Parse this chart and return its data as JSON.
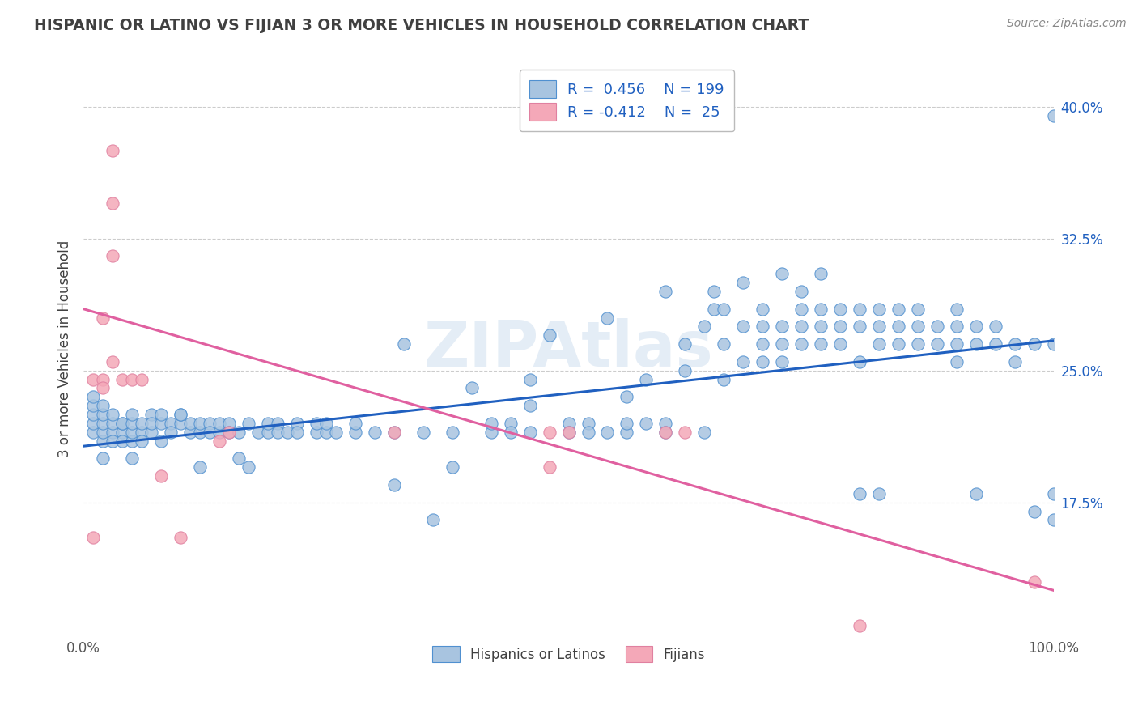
{
  "title": "HISPANIC OR LATINO VS FIJIAN 3 OR MORE VEHICLES IN HOUSEHOLD CORRELATION CHART",
  "source": "Source: ZipAtlas.com",
  "ylabel": "3 or more Vehicles in Household",
  "xlim": [
    0.0,
    1.0
  ],
  "ylim": [
    0.1,
    0.425
  ],
  "blue_scatter_color": "#a8c4e0",
  "pink_scatter_color": "#f4a8b8",
  "blue_line_color": "#2060c0",
  "pink_line_color": "#e060a0",
  "blue_edge_color": "#5090d0",
  "pink_edge_color": "#e080a0",
  "watermark": "ZIPAtlas",
  "background_color": "#ffffff",
  "grid_color": "#cccccc",
  "title_color": "#404040",
  "ytick_vals": [
    0.175,
    0.25,
    0.325,
    0.4
  ],
  "ytick_labels": [
    "17.5%",
    "25.0%",
    "32.5%",
    "40.0%"
  ],
  "xtick_vals": [
    0.0,
    0.25,
    0.5,
    0.75,
    1.0
  ],
  "xtick_labels": [
    "0.0%",
    "",
    "",
    "",
    "100.0%"
  ],
  "blue_points": [
    [
      0.01,
      0.215
    ],
    [
      0.01,
      0.22
    ],
    [
      0.01,
      0.225
    ],
    [
      0.01,
      0.23
    ],
    [
      0.01,
      0.235
    ],
    [
      0.02,
      0.21
    ],
    [
      0.02,
      0.215
    ],
    [
      0.02,
      0.22
    ],
    [
      0.02,
      0.225
    ],
    [
      0.02,
      0.23
    ],
    [
      0.02,
      0.2
    ],
    [
      0.03,
      0.215
    ],
    [
      0.03,
      0.22
    ],
    [
      0.03,
      0.21
    ],
    [
      0.03,
      0.225
    ],
    [
      0.04,
      0.215
    ],
    [
      0.04,
      0.22
    ],
    [
      0.04,
      0.21
    ],
    [
      0.04,
      0.22
    ],
    [
      0.05,
      0.21
    ],
    [
      0.05,
      0.215
    ],
    [
      0.05,
      0.22
    ],
    [
      0.05,
      0.225
    ],
    [
      0.05,
      0.2
    ],
    [
      0.06,
      0.215
    ],
    [
      0.06,
      0.22
    ],
    [
      0.06,
      0.21
    ],
    [
      0.07,
      0.215
    ],
    [
      0.07,
      0.225
    ],
    [
      0.07,
      0.22
    ],
    [
      0.08,
      0.21
    ],
    [
      0.08,
      0.22
    ],
    [
      0.08,
      0.225
    ],
    [
      0.09,
      0.22
    ],
    [
      0.09,
      0.215
    ],
    [
      0.1,
      0.22
    ],
    [
      0.1,
      0.225
    ],
    [
      0.1,
      0.225
    ],
    [
      0.11,
      0.215
    ],
    [
      0.11,
      0.22
    ],
    [
      0.12,
      0.215
    ],
    [
      0.12,
      0.22
    ],
    [
      0.12,
      0.195
    ],
    [
      0.13,
      0.22
    ],
    [
      0.13,
      0.215
    ],
    [
      0.14,
      0.215
    ],
    [
      0.14,
      0.22
    ],
    [
      0.15,
      0.22
    ],
    [
      0.15,
      0.215
    ],
    [
      0.16,
      0.2
    ],
    [
      0.16,
      0.215
    ],
    [
      0.17,
      0.22
    ],
    [
      0.17,
      0.195
    ],
    [
      0.18,
      0.215
    ],
    [
      0.19,
      0.215
    ],
    [
      0.19,
      0.22
    ],
    [
      0.2,
      0.22
    ],
    [
      0.2,
      0.215
    ],
    [
      0.21,
      0.215
    ],
    [
      0.22,
      0.22
    ],
    [
      0.22,
      0.215
    ],
    [
      0.24,
      0.215
    ],
    [
      0.24,
      0.22
    ],
    [
      0.25,
      0.215
    ],
    [
      0.25,
      0.22
    ],
    [
      0.26,
      0.215
    ],
    [
      0.28,
      0.215
    ],
    [
      0.28,
      0.22
    ],
    [
      0.3,
      0.215
    ],
    [
      0.32,
      0.215
    ],
    [
      0.32,
      0.185
    ],
    [
      0.33,
      0.265
    ],
    [
      0.35,
      0.215
    ],
    [
      0.36,
      0.165
    ],
    [
      0.38,
      0.215
    ],
    [
      0.38,
      0.195
    ],
    [
      0.4,
      0.24
    ],
    [
      0.42,
      0.215
    ],
    [
      0.42,
      0.22
    ],
    [
      0.44,
      0.22
    ],
    [
      0.44,
      0.215
    ],
    [
      0.46,
      0.23
    ],
    [
      0.46,
      0.245
    ],
    [
      0.46,
      0.215
    ],
    [
      0.48,
      0.27
    ],
    [
      0.5,
      0.22
    ],
    [
      0.5,
      0.215
    ],
    [
      0.52,
      0.22
    ],
    [
      0.52,
      0.215
    ],
    [
      0.54,
      0.215
    ],
    [
      0.54,
      0.28
    ],
    [
      0.56,
      0.215
    ],
    [
      0.56,
      0.22
    ],
    [
      0.56,
      0.235
    ],
    [
      0.58,
      0.22
    ],
    [
      0.58,
      0.245
    ],
    [
      0.6,
      0.22
    ],
    [
      0.6,
      0.295
    ],
    [
      0.6,
      0.215
    ],
    [
      0.62,
      0.25
    ],
    [
      0.62,
      0.265
    ],
    [
      0.64,
      0.275
    ],
    [
      0.64,
      0.215
    ],
    [
      0.65,
      0.285
    ],
    [
      0.65,
      0.295
    ],
    [
      0.66,
      0.245
    ],
    [
      0.66,
      0.265
    ],
    [
      0.66,
      0.285
    ],
    [
      0.68,
      0.255
    ],
    [
      0.68,
      0.275
    ],
    [
      0.68,
      0.3
    ],
    [
      0.7,
      0.265
    ],
    [
      0.7,
      0.275
    ],
    [
      0.7,
      0.285
    ],
    [
      0.7,
      0.255
    ],
    [
      0.72,
      0.265
    ],
    [
      0.72,
      0.275
    ],
    [
      0.72,
      0.305
    ],
    [
      0.72,
      0.255
    ],
    [
      0.74,
      0.275
    ],
    [
      0.74,
      0.285
    ],
    [
      0.74,
      0.295
    ],
    [
      0.74,
      0.265
    ],
    [
      0.76,
      0.275
    ],
    [
      0.76,
      0.285
    ],
    [
      0.76,
      0.265
    ],
    [
      0.76,
      0.305
    ],
    [
      0.78,
      0.275
    ],
    [
      0.78,
      0.285
    ],
    [
      0.78,
      0.265
    ],
    [
      0.8,
      0.275
    ],
    [
      0.8,
      0.285
    ],
    [
      0.8,
      0.255
    ],
    [
      0.8,
      0.18
    ],
    [
      0.82,
      0.275
    ],
    [
      0.82,
      0.285
    ],
    [
      0.82,
      0.265
    ],
    [
      0.82,
      0.18
    ],
    [
      0.84,
      0.275
    ],
    [
      0.84,
      0.265
    ],
    [
      0.84,
      0.285
    ],
    [
      0.86,
      0.275
    ],
    [
      0.86,
      0.265
    ],
    [
      0.86,
      0.285
    ],
    [
      0.88,
      0.265
    ],
    [
      0.88,
      0.275
    ],
    [
      0.9,
      0.265
    ],
    [
      0.9,
      0.275
    ],
    [
      0.9,
      0.285
    ],
    [
      0.9,
      0.255
    ],
    [
      0.92,
      0.265
    ],
    [
      0.92,
      0.275
    ],
    [
      0.92,
      0.18
    ],
    [
      0.94,
      0.265
    ],
    [
      0.94,
      0.275
    ],
    [
      0.96,
      0.255
    ],
    [
      0.96,
      0.265
    ],
    [
      0.98,
      0.265
    ],
    [
      0.98,
      0.17
    ],
    [
      1.0,
      0.395
    ],
    [
      1.0,
      0.265
    ],
    [
      1.0,
      0.18
    ],
    [
      1.0,
      0.165
    ]
  ],
  "pink_points": [
    [
      0.01,
      0.155
    ],
    [
      0.01,
      0.245
    ],
    [
      0.02,
      0.245
    ],
    [
      0.02,
      0.24
    ],
    [
      0.02,
      0.28
    ],
    [
      0.03,
      0.255
    ],
    [
      0.03,
      0.315
    ],
    [
      0.03,
      0.345
    ],
    [
      0.03,
      0.375
    ],
    [
      0.04,
      0.245
    ],
    [
      0.05,
      0.245
    ],
    [
      0.06,
      0.245
    ],
    [
      0.08,
      0.19
    ],
    [
      0.1,
      0.155
    ],
    [
      0.14,
      0.21
    ],
    [
      0.15,
      0.215
    ],
    [
      0.32,
      0.215
    ],
    [
      0.48,
      0.195
    ],
    [
      0.48,
      0.215
    ],
    [
      0.5,
      0.215
    ],
    [
      0.6,
      0.215
    ],
    [
      0.62,
      0.215
    ],
    [
      0.8,
      0.105
    ],
    [
      0.98,
      0.13
    ]
  ],
  "blue_line": {
    "x0": 0.0,
    "y0": 0.207,
    "x1": 1.0,
    "y1": 0.267
  },
  "pink_line": {
    "x0": 0.0,
    "y0": 0.285,
    "x1": 1.0,
    "y1": 0.125
  },
  "legend_blue_text": "R =  0.456    N = 199",
  "legend_pink_text": "R = -0.412    N =  25",
  "legend_bottom_blue": "Hispanics or Latinos",
  "legend_bottom_pink": "Fijians"
}
